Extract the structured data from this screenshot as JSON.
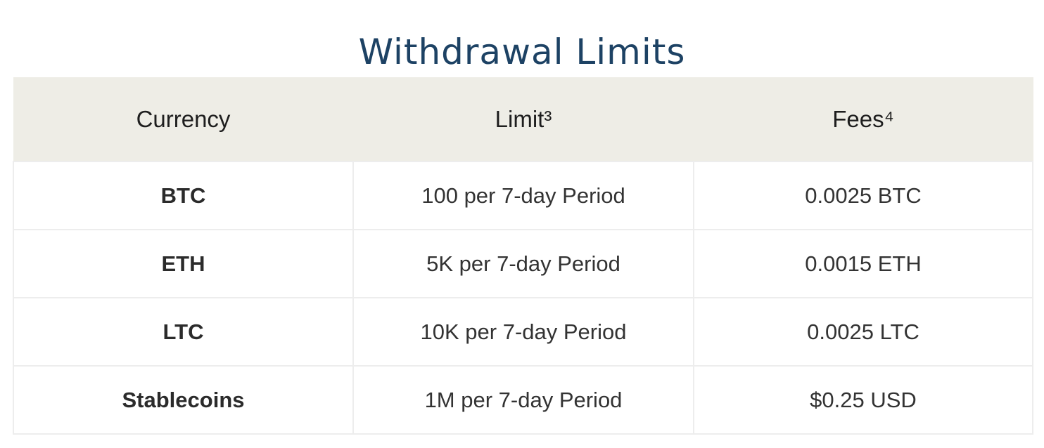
{
  "title": "Withdrawal Limits",
  "table": {
    "headers": [
      "Currency",
      "Limit³",
      "Fees⁴"
    ],
    "rows": [
      [
        "BTC",
        "100 per 7-day Period",
        "0.0025 BTC"
      ],
      [
        "ETH",
        "5K per 7-day Period",
        "0.0015 ETH"
      ],
      [
        "LTC",
        "10K per 7-day Period",
        "0.0025 LTC"
      ],
      [
        "Stablecoins",
        "1M per 7-day Period",
        "$0.25 USD"
      ]
    ]
  },
  "colors": {
    "title": "#1d4264",
    "header_bg": "#eeede6",
    "border": "#ededed",
    "text": "#333333"
  }
}
